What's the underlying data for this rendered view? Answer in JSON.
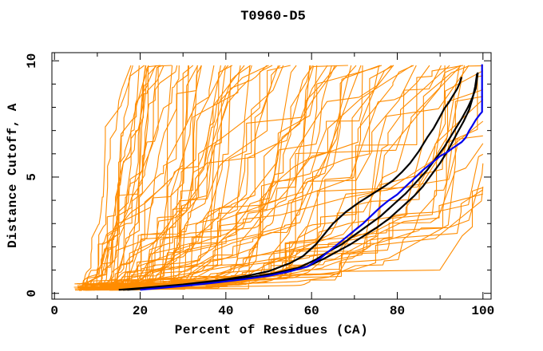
{
  "window": {
    "title": "T0960-D5"
  },
  "chart_data": {
    "type": "line",
    "title": "T0960-D5",
    "xlabel": "Percent of Residues (CA)",
    "ylabel": "Distance Cutoff, A",
    "xlim": [
      -0.6,
      101.9
    ],
    "ylim": [
      -0.25,
      10.35
    ],
    "x_ticks_major": [
      0,
      20,
      40,
      60,
      80,
      100
    ],
    "x_ticks_minor": [
      10,
      30,
      50,
      70,
      90
    ],
    "y_ticks_major": [
      0,
      5,
      10
    ],
    "y_ticks_minor": [
      1,
      2,
      3,
      4,
      6,
      7,
      8,
      9
    ],
    "grid": false,
    "legend": "none",
    "colors": {
      "background": "#FFFFFF",
      "frame": "#000000",
      "other_models": "#FF8C00",
      "highlight_models": "#000000",
      "best_model": "#0000EE"
    },
    "orange_models": {
      "count": 90,
      "color": "#FF8C00",
      "seed": 13,
      "start_percent_range": [
        4.5,
        13.5
      ],
      "start_distance_range": [
        0.12,
        0.42
      ],
      "top_percent_range": [
        19,
        122
      ],
      "max_distance": 9.8
    },
    "highlighted_series": [
      {
        "name": "model-black-1",
        "color": "#000000",
        "width": 2.2,
        "points": [
          [
            15,
            0.15
          ],
          [
            22,
            0.25
          ],
          [
            30,
            0.38
          ],
          [
            38,
            0.55
          ],
          [
            45,
            0.75
          ],
          [
            50,
            0.95
          ],
          [
            55,
            1.3
          ],
          [
            58,
            1.6
          ],
          [
            61,
            2.1
          ],
          [
            63,
            2.55
          ],
          [
            65,
            3.0
          ],
          [
            68,
            3.5
          ],
          [
            71,
            3.9
          ],
          [
            74,
            4.25
          ],
          [
            77,
            4.6
          ],
          [
            79,
            4.85
          ],
          [
            81,
            5.2
          ],
          [
            83,
            5.6
          ],
          [
            85,
            6.1
          ],
          [
            87,
            6.7
          ],
          [
            88.5,
            7.1
          ],
          [
            90,
            7.6
          ],
          [
            91,
            7.95
          ],
          [
            92,
            8.2
          ],
          [
            93,
            8.5
          ],
          [
            94,
            8.8
          ],
          [
            94.6,
            9.05
          ],
          [
            95,
            9.3
          ]
        ]
      },
      {
        "name": "model-black-2",
        "color": "#000000",
        "width": 2.2,
        "points": [
          [
            16,
            0.15
          ],
          [
            26,
            0.3
          ],
          [
            35,
            0.45
          ],
          [
            44,
            0.65
          ],
          [
            51,
            0.85
          ],
          [
            57,
            1.1
          ],
          [
            61,
            1.45
          ],
          [
            64,
            1.8
          ],
          [
            67,
            2.1
          ],
          [
            70,
            2.5
          ],
          [
            73,
            2.9
          ],
          [
            76,
            3.3
          ],
          [
            79,
            3.8
          ],
          [
            82,
            4.3
          ],
          [
            85,
            4.9
          ],
          [
            87,
            5.3
          ],
          [
            89,
            5.8
          ],
          [
            91,
            6.3
          ],
          [
            93,
            6.9
          ],
          [
            95,
            7.5
          ],
          [
            96.5,
            8.0
          ],
          [
            97.5,
            8.4
          ],
          [
            98.3,
            8.8
          ],
          [
            98.6,
            9.2
          ],
          [
            98.8,
            9.5
          ]
        ]
      },
      {
        "name": "model-black-3",
        "color": "#000000",
        "width": 2.2,
        "points": [
          [
            17,
            0.15
          ],
          [
            28,
            0.32
          ],
          [
            38,
            0.5
          ],
          [
            47,
            0.7
          ],
          [
            54,
            0.9
          ],
          [
            59,
            1.15
          ],
          [
            63,
            1.5
          ],
          [
            66,
            1.8
          ],
          [
            69,
            2.1
          ],
          [
            72,
            2.45
          ],
          [
            75,
            2.8
          ],
          [
            78,
            3.2
          ],
          [
            81,
            3.7
          ],
          [
            84,
            4.2
          ],
          [
            86,
            4.6
          ],
          [
            88,
            5.1
          ],
          [
            90,
            5.6
          ],
          [
            92,
            6.2
          ],
          [
            94,
            6.9
          ],
          [
            95.5,
            7.4
          ],
          [
            96.8,
            7.9
          ],
          [
            97.6,
            8.4
          ],
          [
            98.2,
            8.9
          ],
          [
            98.5,
            9.3
          ],
          [
            98.6,
            9.45
          ]
        ]
      },
      {
        "name": "model-blue",
        "color": "#0000EE",
        "width": 2.2,
        "points": [
          [
            20,
            0.15
          ],
          [
            26,
            0.25
          ],
          [
            32,
            0.35
          ],
          [
            38,
            0.47
          ],
          [
            44,
            0.6
          ],
          [
            50,
            0.75
          ],
          [
            55,
            0.95
          ],
          [
            59,
            1.15
          ],
          [
            62,
            1.5
          ],
          [
            64,
            1.8
          ],
          [
            66,
            2.1
          ],
          [
            68,
            2.4
          ],
          [
            70,
            2.7
          ],
          [
            72,
            3.0
          ],
          [
            74,
            3.35
          ],
          [
            76,
            3.7
          ],
          [
            78,
            4.0
          ],
          [
            80,
            4.25
          ],
          [
            82,
            4.6
          ],
          [
            84,
            4.95
          ],
          [
            86,
            5.3
          ],
          [
            88,
            5.6
          ],
          [
            90,
            5.9
          ],
          [
            91.5,
            6.05
          ],
          [
            93,
            6.25
          ],
          [
            95,
            6.5
          ],
          [
            96,
            6.7
          ],
          [
            96.8,
            7.0
          ],
          [
            97.5,
            7.2
          ],
          [
            98.3,
            7.45
          ],
          [
            99.3,
            7.7
          ],
          [
            99.8,
            7.8
          ],
          [
            99.8,
            9.85
          ]
        ]
      }
    ]
  }
}
